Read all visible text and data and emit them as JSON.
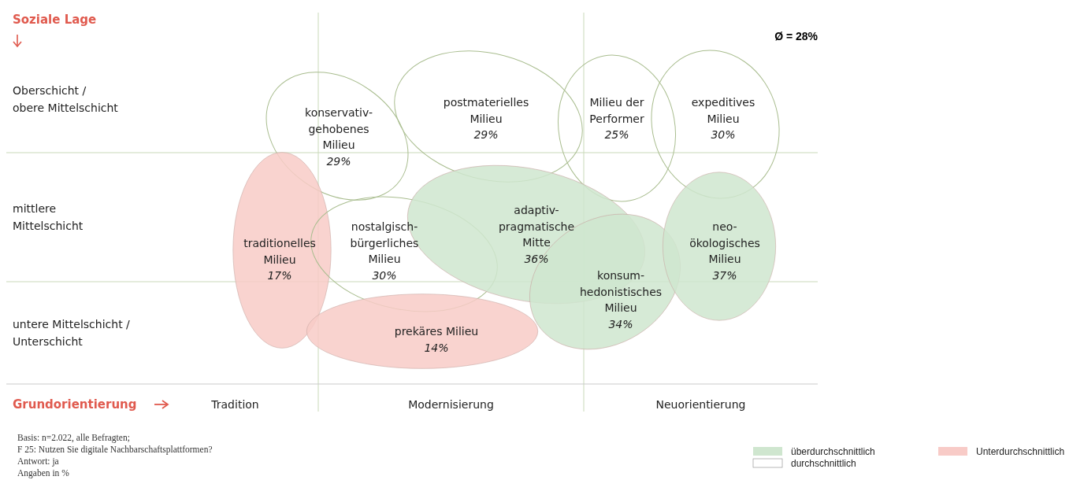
{
  "chart_data": {
    "type": "other",
    "ylabel": "Soziale Lage",
    "xlabel": "Grundorientierung",
    "categories": [
      "konservativ-gehobenes Milieu",
      "postmaterielles Milieu",
      "Milieu der Performer",
      "expeditives Milieu",
      "traditionelles Milieu",
      "nostalgisch-bürgerliches Milieu",
      "adaptiv-pragmatische Mitte",
      "konsum-hedonistisches Milieu",
      "neo-ökologisches Milieu",
      "prekäres Milieu"
    ],
    "series": [
      {
        "name": "überdurchschnittlich",
        "color": "#cfe6cf",
        "values": [
          null,
          null,
          null,
          null,
          null,
          null,
          36,
          34,
          37,
          null
        ],
        "value_labels": [
          null,
          null,
          null,
          null,
          null,
          null,
          "36%",
          "34%",
          "37%",
          null
        ]
      },
      {
        "name": "durchschnittlich",
        "color": "#ffffff",
        "values": [
          29,
          29,
          25,
          30,
          null,
          30,
          null,
          null,
          null,
          null
        ],
        "value_labels": [
          "29%",
          "29%",
          "25%",
          "30%",
          null,
          "30%",
          null,
          null,
          null,
          null
        ]
      },
      {
        "name": "Unterdurchschnittlich",
        "color": "#f8cbc7",
        "values": [
          null,
          null,
          null,
          null,
          17,
          null,
          null,
          null,
          null,
          14
        ],
        "value_labels": [
          null,
          null,
          null,
          null,
          "17%",
          null,
          null,
          null,
          null,
          "14%"
        ]
      }
    ],
    "y_categories": [
      "Oberschicht / obere Mittelschicht",
      "mittlere Mittelschicht",
      "untere Mittelschicht / Unterschicht"
    ],
    "legend": "bottom right",
    "annotations": [
      "Ø = 28%",
      "Tradition",
      "Modernisierung",
      "Neuorientierung",
      "Basis: n=2.022, alle Befragten;",
      "F 25: Nutzen Sie digitale Nachbarschaftsplattformen?",
      "Antwort: ja",
      "Angaben in %"
    ]
  }
}
